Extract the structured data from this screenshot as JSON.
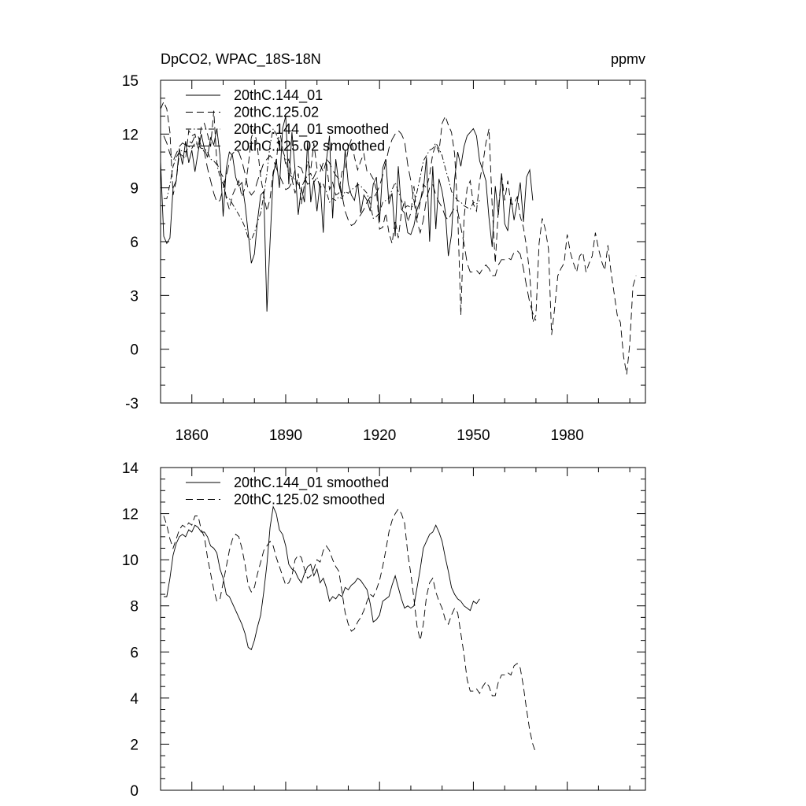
{
  "chart_data": [
    {
      "type": "line",
      "title": "DpCO2, WPAC_18S-18N",
      "units_label": "ppmv",
      "xlim": [
        1850,
        2005
      ],
      "ylim": [
        -3,
        15
      ],
      "y_ticks": [
        -3,
        0,
        3,
        6,
        9,
        12,
        15
      ],
      "x_ticks": [
        1860,
        1890,
        1920,
        1950,
        1980
      ],
      "legend": [
        "20thC.144_01",
        "20thC.125.02",
        "20thC.144_01 smoothed",
        "20thC.125.02 smoothed"
      ],
      "series": [
        {
          "name": "20thC.144_01",
          "style": "solid",
          "x_start": 1850,
          "values": [
            10.5,
            6.3,
            5.9,
            6.2,
            9.0,
            9.4,
            11.2,
            10.3,
            11.6,
            10.4,
            11.1,
            9.9,
            11.0,
            12.0,
            11.2,
            10.7,
            11.8,
            11.4,
            12.3,
            10.8,
            7.4,
            10.1,
            11.0,
            10.8,
            9.6,
            9.1,
            9.3,
            8.1,
            6.5,
            4.8,
            5.3,
            7.2,
            8.6,
            8.8,
            2.1,
            6.0,
            9.7,
            10.6,
            9.0,
            12.3,
            13.0,
            9.2,
            12.1,
            10.0,
            7.5,
            9.0,
            8.2,
            11.6,
            8.2,
            9.4,
            7.7,
            9.3,
            6.5,
            10.5,
            11.9,
            7.3,
            10.6,
            9.2,
            8.5,
            11.1,
            9.2,
            8.6,
            8.3,
            9.3,
            7.6,
            8.6,
            8.3,
            7.7,
            9.2,
            9.6,
            7.1,
            10.1,
            10.6,
            8.1,
            8.7,
            6.3,
            10.2,
            7.8,
            7.6,
            6.5,
            6.4,
            6.9,
            7.8,
            8.3,
            8.8,
            10.7,
            6.0,
            10.2,
            6.7,
            9.5,
            8.8,
            7.7,
            5.2,
            6.4,
            9.5,
            11.0,
            10.2,
            11.3,
            11.9,
            12.1,
            12.3,
            11.9,
            10.5,
            10.0,
            9.4,
            7.3,
            5.7,
            9.1,
            7.5,
            9.8,
            7.0,
            6.6,
            8.5,
            7.2,
            8.2,
            9.3,
            7.1,
            9.6,
            10.0,
            8.3
          ]
        },
        {
          "name": "20thC.125.02",
          "style": "dashed",
          "x_start": 1850,
          "values": [
            13.4,
            13.8,
            13.4,
            12.1,
            8.6,
            9.4,
            10.9,
            10.8,
            10.6,
            12.2,
            11.9,
            12.0,
            11.2,
            12.4,
            12.6,
            12.0,
            11.3,
            13.3,
            10.4,
            9.9,
            9.6,
            8.4,
            7.8,
            8.6,
            9.0,
            9.4,
            8.5,
            9.0,
            10.2,
            11.8,
            12.3,
            11.2,
            9.6,
            8.6,
            7.7,
            8.4,
            9.9,
            10.4,
            12.3,
            11.2,
            10.3,
            10.6,
            9.5,
            8.7,
            9.8,
            8.1,
            9.2,
            10.5,
            10.0,
            11.5,
            10.1,
            10.3,
            9.9,
            10.5,
            8.9,
            9.3,
            8.6,
            8.7,
            9.9,
            10.1,
            11.2,
            11.7,
            10.7,
            10.0,
            10.5,
            10.9,
            9.9,
            9.8,
            9.5,
            8.9,
            6.7,
            6.8,
            7.6,
            6.5,
            5.9,
            7.2,
            6.2,
            7.6,
            8.3,
            7.1,
            7.6,
            9.1,
            7.3,
            8.2,
            9.2,
            9.0,
            9.7,
            10.9,
            11.4,
            11.0,
            12.6,
            13.0,
            12.5,
            12.1,
            10.9,
            7.6,
            1.9,
            7.3,
            9.0,
            9.4,
            8.1,
            7.7,
            9.4,
            10.3,
            11.5,
            12.3,
            8.0,
            4.8,
            7.8,
            9.8,
            8.3,
            9.4,
            8.1,
            8.1,
            8.5,
            7.4,
            6.8,
            5.7,
            4.2,
            1.5,
            1.9,
            5.9,
            7.3,
            6.7,
            5.6,
            0.8,
            2.3,
            4.1,
            4.5,
            4.8,
            6.4,
            5.4,
            4.8,
            4.3,
            5.2,
            5.4,
            4.3,
            4.8,
            5.2,
            6.5,
            5.6,
            4.9,
            4.4,
            5.8,
            4.3,
            3.1,
            1.9,
            1.5,
            -0.4,
            -1.4,
            0.3,
            3.5,
            4.1
          ]
        },
        {
          "name": "20thC.144_01 smoothed",
          "style": "dashdot",
          "x_start": 1851,
          "values": [
            8.4,
            8.4,
            9.2,
            10.2,
            10.7,
            11.0,
            11.1,
            11.0,
            11.3,
            11.2,
            11.5,
            11.4,
            11.2,
            11.2,
            11.0,
            10.6,
            10.5,
            10.3,
            9.6,
            9.2,
            8.5,
            8.4,
            8.1,
            7.8,
            7.5,
            7.2,
            6.8,
            6.2,
            6.1,
            6.5,
            7.1,
            7.6,
            8.6,
            9.8,
            11.4,
            12.3,
            12.0,
            11.3,
            11.1,
            10.6,
            9.8,
            9.6,
            9.5,
            9.2,
            9.0,
            9.4,
            9.7,
            9.8,
            9.3,
            9.6,
            9.0,
            9.2,
            8.8,
            8.2,
            8.4,
            8.3,
            8.5,
            8.4,
            8.8,
            8.7,
            8.9,
            9.0,
            9.2,
            9.1,
            8.9,
            8.7,
            8.1,
            7.3,
            7.4,
            7.6,
            8.2,
            8.3,
            8.4,
            8.9,
            9.3,
            8.8,
            8.3,
            7.9,
            8.0,
            7.9,
            8.0,
            8.8,
            9.6,
            10.5,
            10.8,
            11.1,
            11.2,
            11.5,
            11.2,
            10.8,
            10.1,
            9.5,
            8.8,
            8.5,
            8.3,
            8.2,
            8.0,
            7.9,
            7.8,
            8.2,
            8.1,
            8.3
          ]
        },
        {
          "name": "20thC.125.02 smoothed",
          "style": "longdash",
          "x_start": 1851,
          "values": [
            11.9,
            11.5,
            10.9,
            10.5,
            10.9,
            11.3,
            11.5,
            11.4,
            11.6,
            11.5,
            11.9,
            11.9,
            11.3,
            11.0,
            10.1,
            9.4,
            8.7,
            8.2,
            8.3,
            9.0,
            9.7,
            10.4,
            10.9,
            11.1,
            11.0,
            10.5,
            9.8,
            8.9,
            8.6,
            8.8,
            9.4,
            9.9,
            10.4,
            10.6,
            10.8,
            10.6,
            10.1,
            9.7,
            9.3,
            8.9,
            9.0,
            9.3,
            10.0,
            10.2,
            10.1,
            9.6,
            9.2,
            9.3,
            9.6,
            10.0,
            9.9,
            10.4,
            10.6,
            10.4,
            10.0,
            9.7,
            9.5,
            8.6,
            7.7,
            7.2,
            6.9,
            7.0,
            7.3,
            7.5,
            7.8,
            8.2,
            8.5,
            8.4,
            8.7,
            9.1,
            9.7,
            10.4,
            11.2,
            11.7,
            12.0,
            12.2,
            12.0,
            11.6,
            10.3,
            9.4,
            8.3,
            7.1,
            6.5,
            7.2,
            8.4,
            9.0,
            9.2,
            8.6,
            8.2,
            7.9,
            7.4,
            7.2,
            7.6,
            7.9,
            7.7,
            6.8,
            5.9,
            4.8,
            4.3,
            4.3,
            4.4,
            4.2,
            4.5,
            4.7,
            4.5,
            4.1,
            4.1,
            4.7,
            5.0,
            5.0,
            5.1,
            5.0,
            5.4,
            5.5,
            5.3,
            4.5,
            3.5,
            2.6,
            2.0,
            1.6
          ]
        }
      ]
    },
    {
      "type": "line",
      "title": "",
      "xlim": [
        1850,
        2005
      ],
      "ylim": [
        0,
        14
      ],
      "y_ticks": [
        0,
        2,
        4,
        6,
        8,
        10,
        12,
        14
      ],
      "legend": [
        "20thC.144_01 smoothed",
        "20thC.125.02 smoothed"
      ],
      "series": [
        {
          "name": "20thC.144_01 smoothed",
          "style": "solid",
          "x_start": 1851,
          "values": [
            8.4,
            8.4,
            9.2,
            10.2,
            10.7,
            11.0,
            11.1,
            11.0,
            11.3,
            11.2,
            11.5,
            11.4,
            11.2,
            11.2,
            11.0,
            10.6,
            10.5,
            10.3,
            9.6,
            9.2,
            8.5,
            8.4,
            8.1,
            7.8,
            7.5,
            7.2,
            6.8,
            6.2,
            6.1,
            6.5,
            7.1,
            7.6,
            8.6,
            9.8,
            11.4,
            12.3,
            12.0,
            11.3,
            11.1,
            10.6,
            9.8,
            9.6,
            9.5,
            9.2,
            9.0,
            9.4,
            9.7,
            9.8,
            9.3,
            9.6,
            9.0,
            9.2,
            8.8,
            8.2,
            8.4,
            8.3,
            8.5,
            8.4,
            8.8,
            8.7,
            8.9,
            9.0,
            9.2,
            9.1,
            8.9,
            8.7,
            8.1,
            7.3,
            7.4,
            7.6,
            8.2,
            8.3,
            8.4,
            8.9,
            9.3,
            8.8,
            8.3,
            7.9,
            8.0,
            7.9,
            8.0,
            8.8,
            9.6,
            10.5,
            10.8,
            11.1,
            11.2,
            11.5,
            11.2,
            10.8,
            10.1,
            9.5,
            8.8,
            8.5,
            8.3,
            8.2,
            8.0,
            7.9,
            7.8,
            8.2,
            8.1,
            8.3
          ]
        },
        {
          "name": "20thC.125.02 smoothed",
          "style": "dashed",
          "x_start": 1851,
          "values": [
            11.9,
            11.5,
            10.9,
            10.5,
            10.9,
            11.3,
            11.5,
            11.4,
            11.6,
            11.5,
            11.9,
            11.9,
            11.3,
            11.0,
            10.1,
            9.4,
            8.7,
            8.2,
            8.3,
            9.0,
            9.7,
            10.4,
            10.9,
            11.1,
            11.0,
            10.5,
            9.8,
            8.9,
            8.6,
            8.8,
            9.4,
            9.9,
            10.4,
            10.6,
            10.8,
            10.6,
            10.1,
            9.7,
            9.3,
            8.9,
            9.0,
            9.3,
            10.0,
            10.2,
            10.1,
            9.6,
            9.2,
            9.3,
            9.6,
            10.0,
            9.9,
            10.4,
            10.6,
            10.4,
            10.0,
            9.7,
            9.5,
            8.6,
            7.7,
            7.2,
            6.9,
            7.0,
            7.3,
            7.5,
            7.8,
            8.2,
            8.5,
            8.4,
            8.7,
            9.1,
            9.7,
            10.4,
            11.2,
            11.7,
            12.0,
            12.2,
            12.0,
            11.6,
            10.3,
            9.4,
            8.3,
            7.1,
            6.5,
            7.2,
            8.4,
            9.0,
            9.2,
            8.6,
            8.2,
            7.9,
            7.4,
            7.2,
            7.6,
            7.9,
            7.7,
            6.8,
            5.9,
            4.8,
            4.3,
            4.3,
            4.4,
            4.2,
            4.5,
            4.7,
            4.5,
            4.1,
            4.1,
            4.7,
            5.0,
            5.0,
            5.1,
            5.0,
            5.4,
            5.5,
            5.3,
            4.5,
            3.5,
            2.6,
            2.0,
            1.6
          ]
        }
      ]
    }
  ]
}
